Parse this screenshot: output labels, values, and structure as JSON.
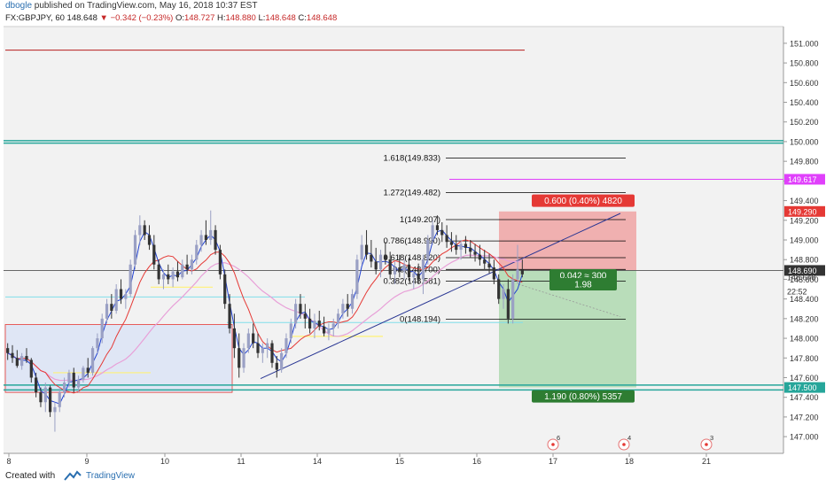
{
  "header": {
    "author": "dbogle",
    "published": " published on TradingView.com, May 16, 2018 10:37 EST"
  },
  "quote": {
    "symbol": "FX:GBPJPY, 60",
    "last": "148.648",
    "change": "−0.342 (−0.23%)",
    "o_label": "O:",
    "o": "148.727",
    "h_label": "H:",
    "h": "148.880",
    "l_label": "L:",
    "l": "148.648",
    "c_label": "C:",
    "c": "148.648"
  },
  "footer": {
    "made_with": "Created with",
    "brand": "TradingView"
  },
  "colors": {
    "chart_bg": "#f2f2f2",
    "up": "#9aa0c4",
    "down": "#333333",
    "ma_red": "#e53935",
    "ma_blue": "#1e3fd1",
    "ma_pink": "#e8a0d8",
    "teal": "#26a69a",
    "magenta": "#e040fb",
    "fib": "#000000",
    "range_box": "#dfe6f5",
    "box_border": "#e53935",
    "risk": "#ef9a9a",
    "reward": "#a5d6a7"
  },
  "chart_data": {
    "type": "candlestick",
    "symbol": "GBPJPY",
    "interval": "60",
    "ylim": [
      146.83,
      151.17
    ],
    "y_ticks": [
      "151.000",
      "150.800",
      "150.600",
      "150.400",
      "150.200",
      "150.000",
      "149.800",
      "149.600",
      "149.400",
      "149.200",
      "149.000",
      "148.800",
      "148.600",
      "148.400",
      "148.200",
      "148.000",
      "147.800",
      "147.600",
      "147.400",
      "147.200",
      "147.000"
    ],
    "x_ticks": [
      "8",
      "9",
      "10",
      "11",
      "14",
      "15",
      "16",
      "17",
      "18",
      "21"
    ],
    "price_labels": [
      {
        "value": "149.617",
        "price": 149.617,
        "color": "#e040fb"
      },
      {
        "value": "149.290",
        "price": 149.29,
        "color": "#e53935"
      },
      {
        "value": "148.690",
        "price": 148.69,
        "color": "#333333"
      },
      {
        "value": "148.648",
        "price": 148.62,
        "color": "#333333",
        "plain": true
      },
      {
        "value": "22:52",
        "price": 148.48,
        "color": "#333333",
        "plain": true
      },
      {
        "value": "147.500",
        "price": 147.5,
        "color": "#26a69a"
      }
    ],
    "fib_levels": [
      {
        "label": "1.618(149.833)",
        "price": 149.833
      },
      {
        "label": "1.272(149.482)",
        "price": 149.482
      },
      {
        "label": "1(149.207)",
        "price": 149.207
      },
      {
        "label": "0.786(148.990)",
        "price": 148.99
      },
      {
        "label": "0.618(148.820)",
        "price": 148.82
      },
      {
        "label": "0.5(148.700)",
        "price": 148.7
      },
      {
        "label": "0.382(148.581)",
        "price": 148.581
      },
      {
        "label": "0(148.194)",
        "price": 148.194
      }
    ],
    "position": {
      "risk_label": "0.600 (0.40%) 4820",
      "reward_label": "1.190 (0.80%) 5357",
      "entry_label": "0.042 ≈ 300",
      "ratio_label": "1.98",
      "entry": 148.69,
      "stop": 149.29,
      "target": 147.5
    },
    "events": [
      {
        "count": "6",
        "day": "17"
      },
      {
        "count": "4",
        "day": "18"
      },
      {
        "count": "3",
        "day": "21"
      }
    ],
    "candles": [
      [
        147.9,
        147.95,
        147.78,
        147.85
      ],
      [
        147.85,
        147.93,
        147.75,
        147.8
      ],
      [
        147.8,
        147.88,
        147.7,
        147.72
      ],
      [
        147.72,
        147.85,
        147.68,
        147.82
      ],
      [
        147.82,
        147.9,
        147.75,
        147.78
      ],
      [
        147.78,
        147.8,
        147.55,
        147.6
      ],
      [
        147.6,
        147.65,
        147.4,
        147.45
      ],
      [
        147.45,
        147.5,
        147.3,
        147.35
      ],
      [
        147.35,
        147.55,
        147.25,
        147.5
      ],
      [
        147.5,
        147.52,
        147.2,
        147.25
      ],
      [
        147.25,
        147.35,
        147.05,
        147.3
      ],
      [
        147.3,
        147.5,
        147.25,
        147.45
      ],
      [
        147.45,
        147.6,
        147.4,
        147.55
      ],
      [
        147.55,
        147.68,
        147.5,
        147.65
      ],
      [
        147.65,
        147.7,
        147.45,
        147.5
      ],
      [
        147.5,
        147.62,
        147.45,
        147.58
      ],
      [
        147.58,
        147.72,
        147.55,
        147.7
      ],
      [
        147.7,
        147.8,
        147.6,
        147.65
      ],
      [
        147.65,
        147.92,
        147.62,
        147.9
      ],
      [
        147.9,
        148.05,
        147.85,
        148.0
      ],
      [
        148.0,
        148.25,
        147.95,
        148.2
      ],
      [
        148.2,
        148.4,
        148.15,
        148.35
      ],
      [
        148.35,
        148.45,
        148.2,
        148.28
      ],
      [
        148.28,
        148.55,
        148.25,
        148.5
      ],
      [
        148.5,
        148.6,
        148.35,
        148.4
      ],
      [
        148.4,
        148.5,
        148.3,
        148.45
      ],
      [
        148.45,
        148.8,
        148.42,
        148.75
      ],
      [
        148.75,
        149.1,
        148.7,
        149.05
      ],
      [
        149.05,
        149.25,
        148.95,
        149.15
      ],
      [
        149.15,
        149.2,
        149.0,
        149.05
      ],
      [
        149.05,
        149.15,
        148.9,
        148.95
      ],
      [
        148.95,
        149.05,
        148.7,
        148.75
      ],
      [
        148.75,
        148.8,
        148.55,
        148.6
      ],
      [
        148.6,
        148.7,
        148.5,
        148.65
      ],
      [
        148.65,
        148.75,
        148.55,
        148.6
      ],
      [
        148.6,
        148.72,
        148.52,
        148.68
      ],
      [
        148.68,
        148.78,
        148.58,
        148.62
      ],
      [
        148.62,
        148.8,
        148.6,
        148.75
      ],
      [
        148.75,
        148.85,
        148.65,
        148.7
      ],
      [
        148.7,
        148.85,
        148.65,
        148.8
      ],
      [
        148.8,
        149.0,
        148.75,
        148.95
      ],
      [
        148.95,
        149.1,
        148.88,
        149.05
      ],
      [
        149.05,
        149.2,
        148.95,
        149.0
      ],
      [
        149.0,
        149.3,
        148.95,
        149.1
      ],
      [
        149.1,
        149.15,
        148.85,
        148.9
      ],
      [
        148.9,
        148.95,
        148.6,
        148.65
      ],
      [
        148.65,
        148.7,
        148.3,
        148.35
      ],
      [
        148.35,
        148.45,
        148.05,
        148.1
      ],
      [
        148.1,
        148.25,
        147.8,
        147.9
      ],
      [
        147.9,
        148.05,
        147.6,
        147.7
      ],
      [
        147.7,
        147.95,
        147.65,
        147.9
      ],
      [
        147.9,
        148.1,
        147.85,
        148.05
      ],
      [
        148.05,
        148.15,
        147.9,
        147.95
      ],
      [
        147.95,
        148.05,
        147.8,
        147.85
      ],
      [
        147.85,
        147.95,
        147.75,
        147.9
      ],
      [
        147.9,
        148.0,
        147.8,
        147.95
      ],
      [
        147.95,
        147.98,
        147.7,
        147.75
      ],
      [
        147.75,
        147.82,
        147.6,
        147.68
      ],
      [
        147.68,
        147.9,
        147.65,
        147.85
      ],
      [
        147.85,
        148.05,
        147.8,
        148.0
      ],
      [
        148.0,
        148.2,
        147.95,
        148.15
      ],
      [
        148.15,
        148.4,
        148.1,
        148.35
      ],
      [
        148.35,
        148.45,
        148.2,
        148.25
      ],
      [
        148.25,
        148.35,
        148.1,
        148.2
      ],
      [
        148.2,
        148.3,
        148.05,
        148.1
      ],
      [
        148.1,
        148.25,
        148.0,
        148.18
      ],
      [
        148.18,
        148.28,
        148.08,
        148.12
      ],
      [
        148.12,
        148.22,
        148.02,
        148.05
      ],
      [
        148.05,
        148.15,
        147.98,
        148.1
      ],
      [
        148.1,
        148.2,
        148.02,
        148.15
      ],
      [
        148.15,
        148.3,
        148.1,
        148.25
      ],
      [
        148.25,
        148.4,
        148.2,
        148.35
      ],
      [
        148.35,
        148.45,
        148.22,
        148.3
      ],
      [
        148.3,
        148.5,
        148.25,
        148.45
      ],
      [
        148.45,
        148.85,
        148.4,
        148.8
      ],
      [
        148.8,
        149.05,
        148.75,
        148.95
      ],
      [
        148.95,
        149.1,
        148.8,
        148.85
      ],
      [
        148.85,
        149.0,
        148.72,
        148.78
      ],
      [
        148.78,
        148.92,
        148.65,
        148.7
      ],
      [
        148.7,
        148.9,
        148.62,
        148.85
      ],
      [
        148.85,
        148.98,
        148.75,
        148.8
      ],
      [
        148.8,
        148.88,
        148.6,
        148.65
      ],
      [
        148.65,
        148.78,
        148.55,
        148.72
      ],
      [
        148.72,
        148.85,
        148.62,
        148.68
      ],
      [
        148.68,
        148.8,
        148.6,
        148.75
      ],
      [
        148.75,
        148.82,
        148.58,
        148.62
      ],
      [
        148.62,
        148.7,
        148.5,
        148.66
      ],
      [
        148.66,
        148.76,
        148.55,
        148.6
      ],
      [
        148.6,
        148.85,
        148.45,
        148.8
      ],
      [
        148.8,
        149.05,
        148.75,
        149.0
      ],
      [
        149.0,
        149.2,
        148.95,
        149.15
      ],
      [
        149.15,
        149.25,
        149.05,
        149.1
      ],
      [
        149.1,
        149.18,
        148.98,
        149.05
      ],
      [
        149.05,
        149.15,
        148.92,
        148.98
      ],
      [
        148.98,
        149.08,
        148.88,
        148.95
      ],
      [
        148.95,
        149.05,
        148.85,
        148.9
      ],
      [
        148.9,
        149.0,
        148.8,
        148.96
      ],
      [
        148.96,
        149.04,
        148.86,
        148.92
      ],
      [
        148.92,
        149.0,
        148.82,
        148.88
      ],
      [
        148.88,
        148.96,
        148.78,
        148.85
      ],
      [
        148.85,
        148.95,
        148.74,
        148.8
      ],
      [
        148.8,
        148.9,
        148.7,
        148.76
      ],
      [
        148.76,
        148.86,
        148.66,
        148.72
      ],
      [
        148.72,
        148.8,
        148.55,
        148.6
      ],
      [
        148.6,
        148.65,
        148.35,
        148.4
      ],
      [
        148.4,
        148.55,
        148.3,
        148.5
      ],
      [
        148.5,
        148.6,
        148.15,
        148.2
      ],
      [
        148.2,
        148.65,
        148.15,
        148.6
      ],
      [
        148.6,
        148.95,
        148.55,
        148.7
      ],
      [
        148.7,
        148.8,
        148.62,
        148.65
      ]
    ]
  }
}
